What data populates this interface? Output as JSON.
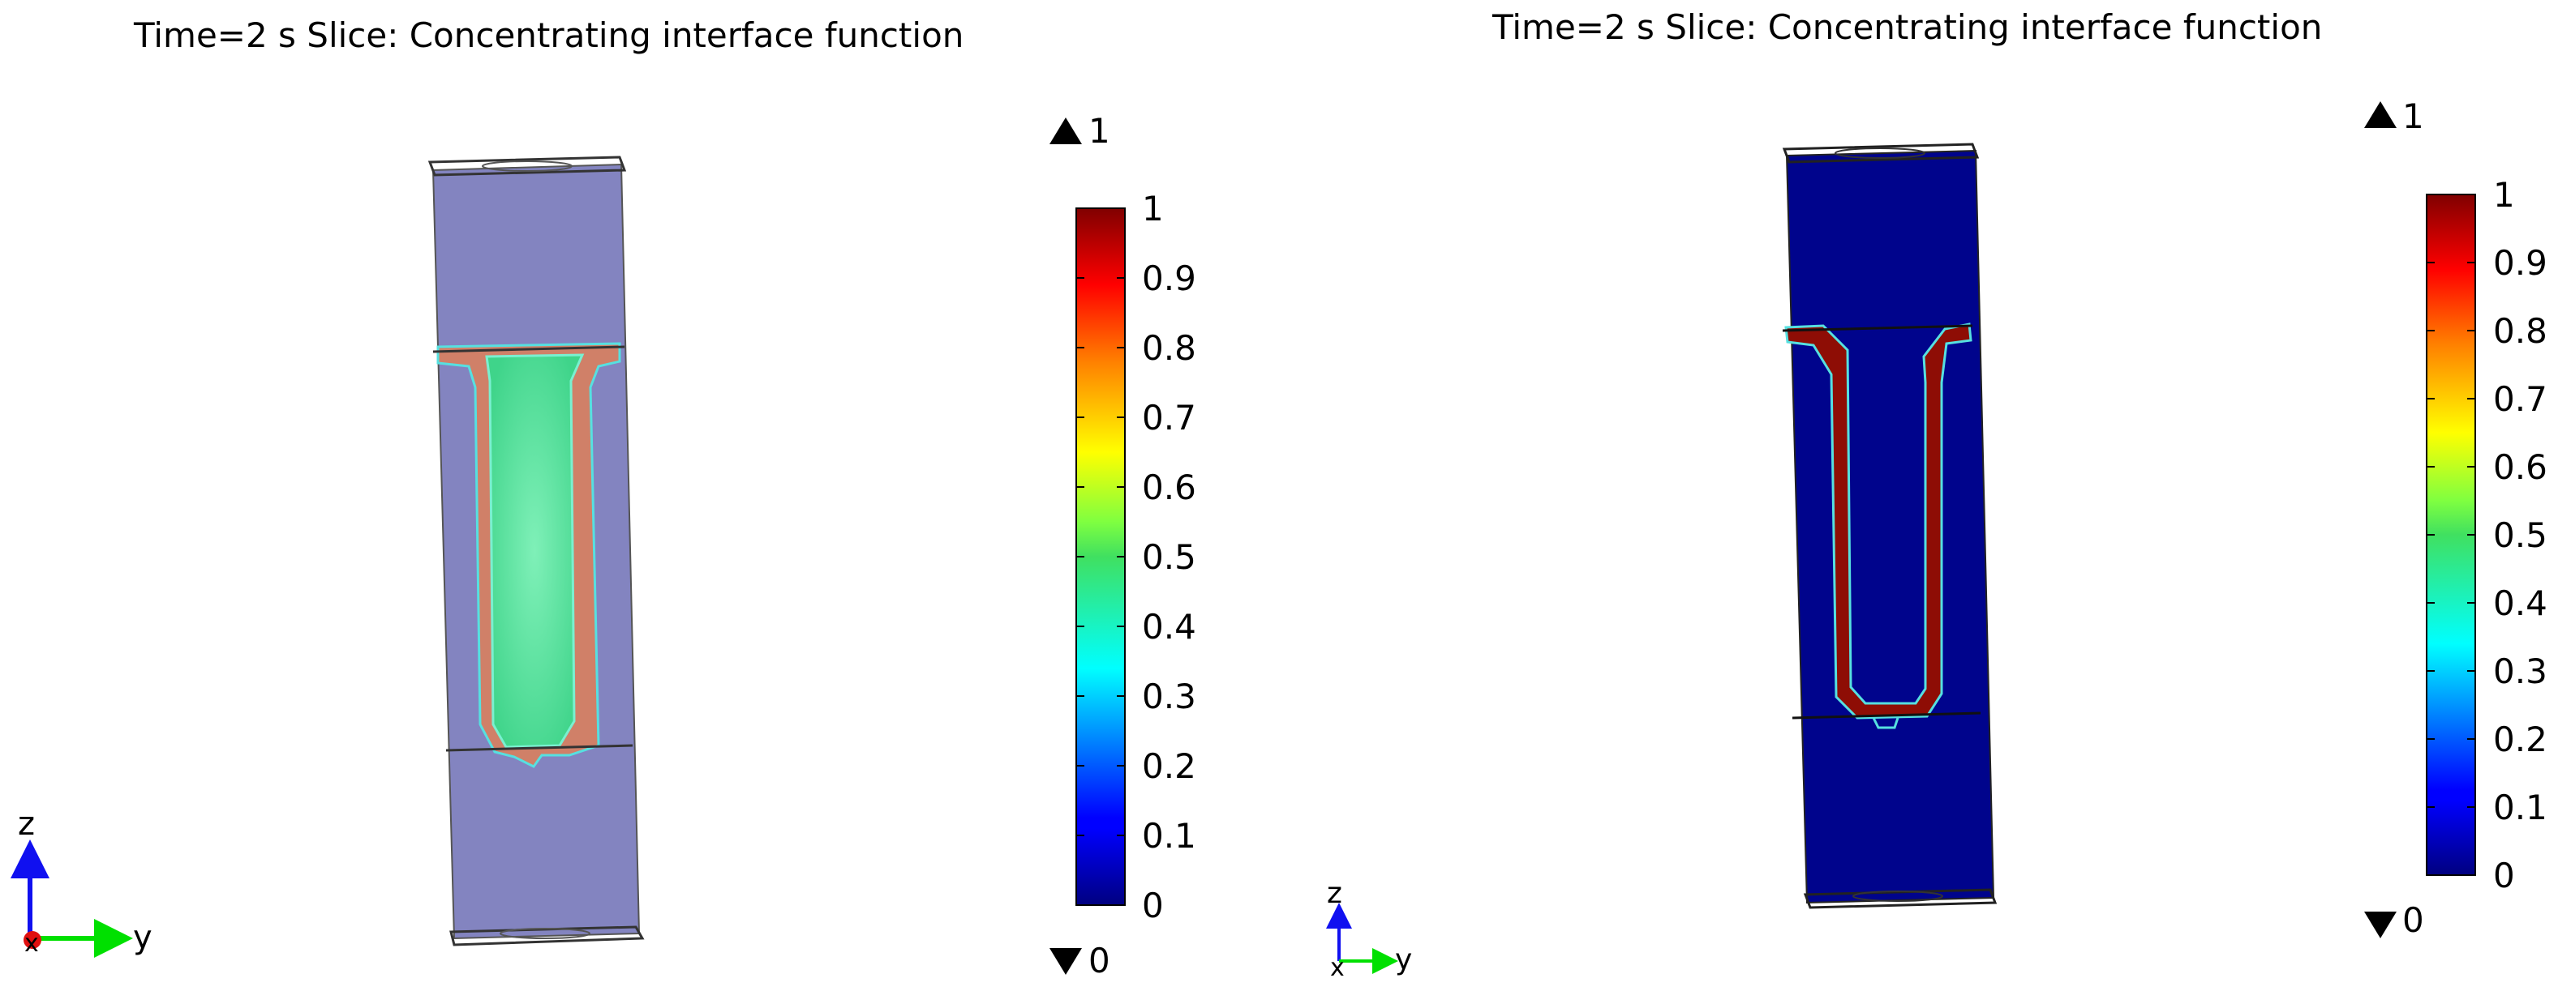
{
  "plots": [
    {
      "title": "Time=2 s   Slice: Concentrating interface function",
      "colorbar": {
        "max_marker": "1",
        "min_marker": "0",
        "ticks": [
          "1",
          "0.9",
          "0.8",
          "0.7",
          "0.6",
          "0.5",
          "0.4",
          "0.3",
          "0.2",
          "0.1",
          "0"
        ]
      },
      "axes_triad": {
        "z_label": "z",
        "y_label": "y",
        "x_label": "x"
      }
    },
    {
      "title": "Time=2 s   Slice: Concentrating interface function",
      "colorbar": {
        "max_marker": "1",
        "min_marker": "0",
        "ticks": [
          "1",
          "0.9",
          "0.8",
          "0.7",
          "0.6",
          "0.5",
          "0.4",
          "0.3",
          "0.2",
          "0.1",
          "0"
        ]
      },
      "axes_triad": {
        "z_label": "z",
        "y_label": "y",
        "x_label": "x"
      }
    }
  ],
  "colors": {
    "background_left": "#8384c0",
    "background_right": "#00048c",
    "interface": "#8e0d05",
    "inner_fluid_left": "#46df93",
    "axis_x": "#e01010",
    "axis_y": "#00e000",
    "axis_z": "#1010f0"
  }
}
